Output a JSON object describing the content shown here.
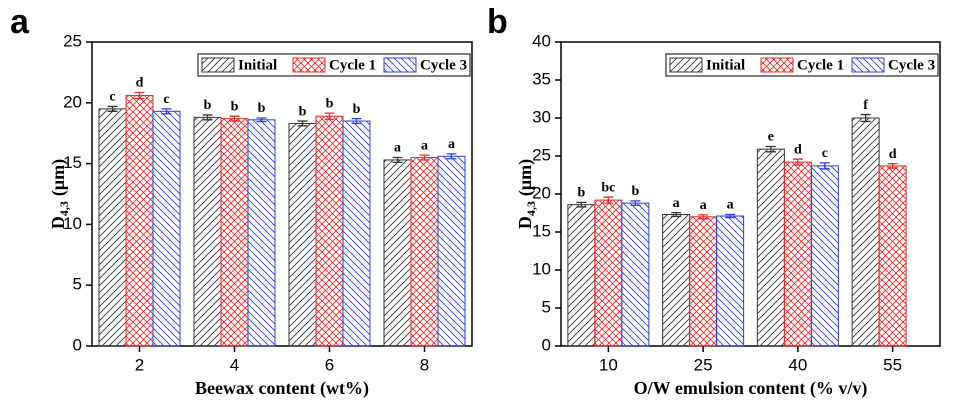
{
  "chart_data": [
    {
      "type": "bar",
      "panel": "a",
      "xlabel": "Beewax content (wt%)",
      "ylabel": [
        "D",
        "4,3",
        "(μm)"
      ],
      "categories": [
        "2",
        "4",
        "6",
        "8"
      ],
      "ylim": [
        0,
        25
      ],
      "yticks": [
        0,
        5,
        10,
        15,
        20,
        25
      ],
      "legend": "upper right",
      "series": [
        {
          "name": "Initial",
          "color": "#333333",
          "hatch": "diagonal",
          "values": [
            19.5,
            18.8,
            18.3,
            15.3
          ],
          "errors": [
            0.2,
            0.2,
            0.2,
            0.2
          ],
          "labels": [
            "c",
            "b",
            "b",
            "a"
          ]
        },
        {
          "name": "Cycle 1",
          "color": "#e8292b",
          "hatch": "cross",
          "values": [
            20.6,
            18.7,
            18.9,
            15.5
          ],
          "errors": [
            0.25,
            0.2,
            0.25,
            0.2
          ],
          "labels": [
            "d",
            "b",
            "b",
            "a"
          ]
        },
        {
          "name": "Cycle 3",
          "color": "#2b3fd8",
          "hatch": "backdiagonal",
          "values": [
            19.3,
            18.6,
            18.5,
            15.6
          ],
          "errors": [
            0.2,
            0.15,
            0.2,
            0.2
          ],
          "labels": [
            "c",
            "b",
            "b",
            "a"
          ]
        }
      ]
    },
    {
      "type": "bar",
      "panel": "b",
      "xlabel": "O/W emulsion content (% v/v)",
      "ylabel": [
        "D",
        "4,3",
        "(μm)"
      ],
      "categories": [
        "10",
        "25",
        "40",
        "55"
      ],
      "ylim": [
        0,
        40
      ],
      "yticks": [
        0,
        5,
        10,
        15,
        20,
        25,
        30,
        35,
        40
      ],
      "legend": "upper right",
      "series": [
        {
          "name": "Initial",
          "color": "#333333",
          "hatch": "diagonal",
          "values": [
            18.6,
            17.3,
            25.9,
            30.0
          ],
          "errors": [
            0.3,
            0.25,
            0.35,
            0.45
          ],
          "labels": [
            "b",
            "a",
            "e",
            "f"
          ]
        },
        {
          "name": "Cycle 1",
          "color": "#e8292b",
          "hatch": "cross",
          "values": [
            19.2,
            17.0,
            24.2,
            23.7
          ],
          "errors": [
            0.4,
            0.25,
            0.4,
            0.3
          ],
          "labels": [
            "bc",
            "a",
            "d",
            "d"
          ]
        },
        {
          "name": "Cycle 3",
          "color": "#2b3fd8",
          "hatch": "backdiagonal",
          "values": [
            18.8,
            17.1,
            23.7,
            null
          ],
          "errors": [
            0.3,
            0.2,
            0.4,
            null
          ],
          "labels": [
            "b",
            "a",
            "c",
            null
          ]
        }
      ]
    }
  ]
}
